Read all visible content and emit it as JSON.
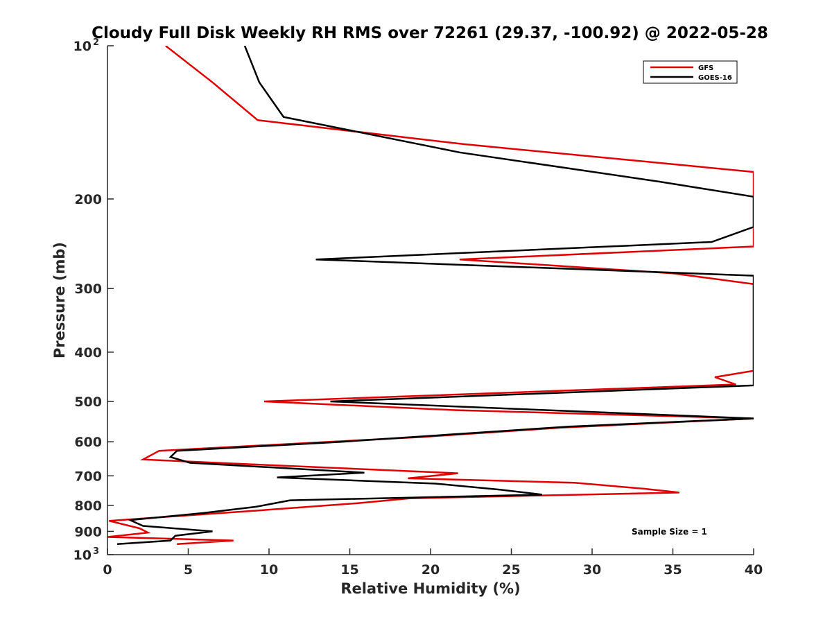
{
  "chart_data": {
    "type": "line",
    "title": "Cloudy Full Disk Weekly RH RMS over 72261 (29.37, -100.92) @ 2022-05-28",
    "xlabel": "Relative Humidity (%)",
    "ylabel": "Pressure (mb)",
    "xlim": [
      0,
      40
    ],
    "ylim": [
      100,
      1000
    ],
    "y_scale": "log",
    "y_reversed": true,
    "x_ticks": [
      "0",
      "5",
      "10",
      "15",
      "20",
      "25",
      "30",
      "35",
      "40"
    ],
    "y_ticks": [
      {
        "value": 100,
        "label": "10",
        "sup": "2"
      },
      {
        "value": 200,
        "label": "200"
      },
      {
        "value": 300,
        "label": "300"
      },
      {
        "value": 400,
        "label": "400"
      },
      {
        "value": 500,
        "label": "500"
      },
      {
        "value": 600,
        "label": "600"
      },
      {
        "value": 700,
        "label": "700"
      },
      {
        "value": 800,
        "label": "800"
      },
      {
        "value": 900,
        "label": "900"
      },
      {
        "value": 1000,
        "label": "10",
        "sup": "3"
      }
    ],
    "grid": false,
    "legend": "top-right",
    "annotation": "Sample Size = 1",
    "series": [
      {
        "name": "GFS",
        "color": "#e00000",
        "points": [
          [
            3.6,
            100
          ],
          [
            6.5,
            118
          ],
          [
            9.3,
            140
          ],
          [
            22,
            156
          ],
          [
            40,
            177
          ],
          [
            40,
            248
          ],
          [
            21.8,
            263
          ],
          [
            35,
            280
          ],
          [
            40,
            294
          ],
          [
            40,
            435
          ],
          [
            37.6,
            448
          ],
          [
            38.9,
            463
          ],
          [
            9.7,
            500
          ],
          [
            21.5,
            520
          ],
          [
            40,
            540
          ],
          [
            28,
            563
          ],
          [
            19.5,
            587
          ],
          [
            3.2,
            625
          ],
          [
            2.2,
            650
          ],
          [
            9.2,
            665
          ],
          [
            21.7,
            692
          ],
          [
            18.6,
            708
          ],
          [
            28.9,
            722
          ],
          [
            33.2,
            742
          ],
          [
            35.4,
            755
          ],
          [
            18.7,
            775
          ],
          [
            15.5,
            792
          ],
          [
            9.5,
            818
          ],
          [
            0.1,
            858
          ],
          [
            2,
            888
          ],
          [
            2.5,
            905
          ],
          [
            0,
            923
          ],
          [
            7.8,
            938
          ],
          [
            4.3,
            953
          ]
        ]
      },
      {
        "name": "GOES-16",
        "color": "#000000",
        "points": [
          [
            8.5,
            100
          ],
          [
            9.4,
            118
          ],
          [
            10.9,
            138
          ],
          [
            21.8,
            162
          ],
          [
            34.2,
            185
          ],
          [
            40,
            198
          ],
          [
            40,
            227
          ],
          [
            37.4,
            243
          ],
          [
            12.9,
            263
          ],
          [
            40,
            283
          ],
          [
            40,
            465
          ],
          [
            13.8,
            500
          ],
          [
            40,
            540
          ],
          [
            28.6,
            560
          ],
          [
            14.5,
            600
          ],
          [
            4.3,
            625
          ],
          [
            3.9,
            643
          ],
          [
            5.1,
            660
          ],
          [
            15.9,
            690
          ],
          [
            10.5,
            705
          ],
          [
            20.3,
            725
          ],
          [
            24.3,
            745
          ],
          [
            26.9,
            762
          ],
          [
            11.3,
            782
          ],
          [
            9.2,
            805
          ],
          [
            6,
            828
          ],
          [
            1.4,
            855
          ],
          [
            2.2,
            878
          ],
          [
            6.5,
            900
          ],
          [
            4.2,
            918
          ],
          [
            3.9,
            938
          ],
          [
            0.6,
            953
          ]
        ]
      }
    ]
  }
}
